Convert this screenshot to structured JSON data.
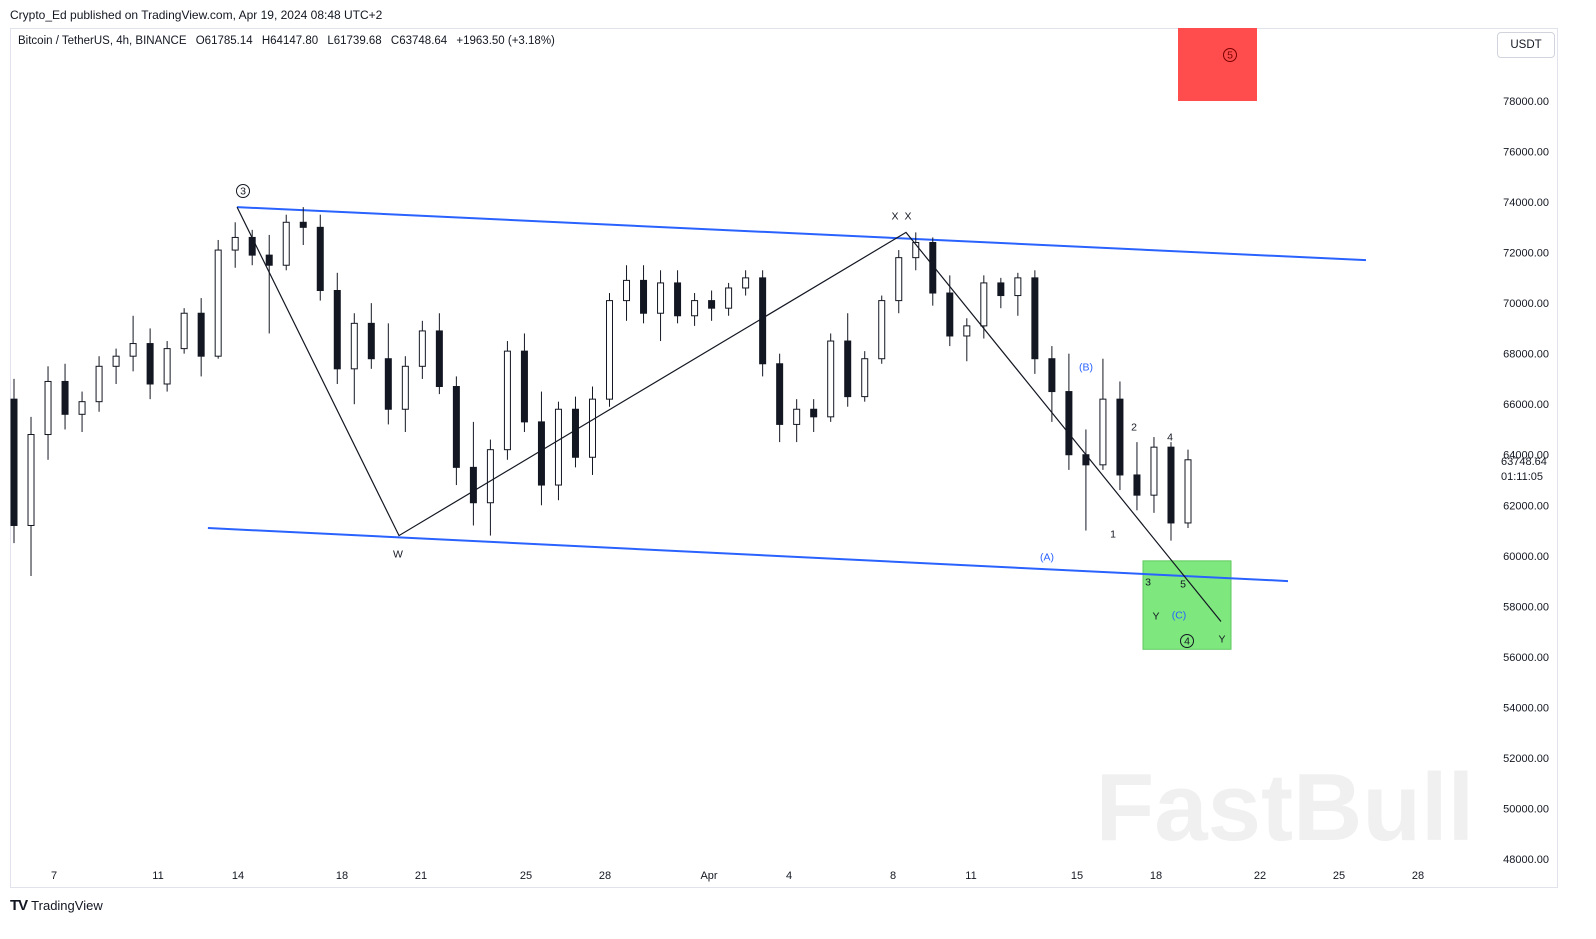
{
  "header": {
    "published": "Crypto_Ed published on TradingView.com, Apr 19, 2024 08:48 UTC+2",
    "symbol": "Bitcoin / TetherUS, 4h, BINANCE",
    "open": "O61785.14",
    "high": "H64147.80",
    "low": "L61739.68",
    "close": "C63748.64",
    "change": "+1963.50 (+3.18%)"
  },
  "currency_button": "USDT",
  "footer": {
    "logo": "TV",
    "brand": "TradingView"
  },
  "watermark": "FastBull",
  "price_box": {
    "price": "63748.64",
    "countdown": "01:11:05",
    "color": "#131722"
  },
  "colors": {
    "channel": "#2962ff",
    "up": "#ffffff",
    "down": "#131722",
    "red_box": "#ff4d4d",
    "green_box": "#7ee87e",
    "wave_blue": "#2962ff"
  },
  "chart_data": {
    "type": "candlestick",
    "x_tick_labels": [
      "7",
      "11",
      "14",
      "18",
      "21",
      "25",
      "28",
      "Apr",
      "4",
      "8",
      "11",
      "15",
      "18",
      "22",
      "25",
      "28"
    ],
    "y_tick_labels": [
      "78000.00",
      "76000.00",
      "74000.00",
      "72000.00",
      "70000.00",
      "68000.00",
      "66000.00",
      "64000.00",
      "62000.00",
      "60000.00",
      "58000.00",
      "56000.00",
      "54000.00",
      "52000.00",
      "50000.00",
      "48000.00"
    ],
    "ylim": [
      47800,
      79800
    ],
    "swing_path": [
      {
        "x": "Mar 14",
        "y": 73800
      },
      {
        "x": "Mar 20",
        "y": 60800
      },
      {
        "x": "Apr 8",
        "y": 72800
      },
      {
        "x": "Apr 19",
        "y": 57400
      }
    ],
    "upper_channel": [
      {
        "x": "Mar 14",
        "y": 73800
      },
      {
        "x": "Apr 26",
        "y": 71700
      }
    ],
    "lower_channel": [
      {
        "x": "Mar 13",
        "y": 61100
      },
      {
        "x": "Apr 23",
        "y": 59000
      }
    ],
    "red_box": {
      "x_from": "Apr 18",
      "x_to": "Apr 20",
      "y_from": 78000,
      "y_to": 81000
    },
    "green_box": {
      "x_from": "Apr 17",
      "x_to": "Apr 20",
      "y_from": 56300,
      "y_to": 59800
    },
    "wave_labels": [
      {
        "text": "3",
        "circled": true,
        "x": "Mar 14",
        "y": 74500
      },
      {
        "text": "W",
        "x": "Mar 20",
        "y": 60200
      },
      {
        "text": "X",
        "x": "Apr 8",
        "y": 73400
      },
      {
        "text": "X",
        "x": "Apr 8",
        "y": 73400
      },
      {
        "text": "(B)",
        "x": "Apr 15",
        "y": 67600,
        "blue": true
      },
      {
        "text": "(A)",
        "x": "Apr 14",
        "y": 60000,
        "blue": true
      },
      {
        "text": "2",
        "x": "Apr 17",
        "y": 64700
      },
      {
        "text": "4",
        "x": "Apr 18",
        "y": 64300
      },
      {
        "text": "1",
        "x": "Apr 16",
        "y": 61100
      },
      {
        "text": "3",
        "x": "Apr 17",
        "y": 59100
      },
      {
        "text": "5",
        "x": "Apr 18",
        "y": 59000
      },
      {
        "text": "Y",
        "x": "Apr 17",
        "y": 57600
      },
      {
        "text": "(C)",
        "x": "Apr 18",
        "y": 57600,
        "blue": true
      },
      {
        "text": "4",
        "circled": true,
        "x": "Apr 18",
        "y": 56600
      },
      {
        "text": "Y",
        "x": "Apr 19",
        "y": 56800
      },
      {
        "text": "5",
        "circled": true,
        "x": "Apr 18",
        "y": 79800
      }
    ],
    "candles_ohlc_approx": [
      [
        66200,
        67000,
        60500,
        61200
      ],
      [
        61200,
        65500,
        59200,
        64800
      ],
      [
        64800,
        67500,
        63800,
        66900
      ],
      [
        66900,
        67600,
        65000,
        65600
      ],
      [
        65600,
        66500,
        64900,
        66100
      ],
      [
        66100,
        67900,
        65700,
        67500
      ],
      [
        67500,
        68200,
        66800,
        67900
      ],
      [
        67900,
        69500,
        67300,
        68400
      ],
      [
        68400,
        69000,
        66200,
        66800
      ],
      [
        66800,
        68500,
        66500,
        68200
      ],
      [
        68200,
        69800,
        68000,
        69600
      ],
      [
        69600,
        70200,
        67100,
        67900
      ],
      [
        67900,
        72500,
        67800,
        72100
      ],
      [
        72100,
        73200,
        71400,
        72600
      ],
      [
        72600,
        72900,
        71500,
        71900
      ],
      [
        71900,
        72700,
        68800,
        71500
      ],
      [
        71500,
        73500,
        71300,
        73200
      ],
      [
        73200,
        73800,
        72300,
        73000
      ],
      [
        73000,
        73500,
        70100,
        70500
      ],
      [
        70500,
        71200,
        66800,
        67400
      ],
      [
        67400,
        69600,
        66000,
        69200
      ],
      [
        69200,
        70000,
        67400,
        67800
      ],
      [
        67800,
        69200,
        65200,
        65800
      ],
      [
        65800,
        67900,
        64900,
        67500
      ],
      [
        67500,
        69300,
        67000,
        68900
      ],
      [
        68900,
        69600,
        66400,
        66700
      ],
      [
        66700,
        67100,
        62800,
        63500
      ],
      [
        63500,
        65300,
        61200,
        62100
      ],
      [
        62100,
        64600,
        60800,
        64200
      ],
      [
        64200,
        68500,
        63800,
        68100
      ],
      [
        68100,
        68800,
        64900,
        65300
      ],
      [
        65300,
        66500,
        62000,
        62800
      ],
      [
        62800,
        66100,
        62200,
        65800
      ],
      [
        65800,
        66300,
        63500,
        63900
      ],
      [
        63900,
        66700,
        63200,
        66200
      ],
      [
        66200,
        70400,
        65900,
        70100
      ],
      [
        70100,
        71500,
        69300,
        70900
      ],
      [
        70900,
        71500,
        69200,
        69600
      ],
      [
        69600,
        71300,
        68500,
        70800
      ],
      [
        70800,
        71300,
        69200,
        69500
      ],
      [
        69500,
        70400,
        69100,
        70100
      ],
      [
        70100,
        70500,
        69300,
        69800
      ],
      [
        69800,
        70800,
        69500,
        70600
      ],
      [
        70600,
        71300,
        70300,
        71000
      ],
      [
        71000,
        71300,
        67100,
        67600
      ],
      [
        67600,
        68000,
        64500,
        65200
      ],
      [
        65200,
        66200,
        64500,
        65800
      ],
      [
        65800,
        66200,
        64900,
        65500
      ],
      [
        65500,
        68800,
        65300,
        68500
      ],
      [
        68500,
        69600,
        65900,
        66300
      ],
      [
        66300,
        68100,
        66100,
        67800
      ],
      [
        67800,
        70300,
        67600,
        70100
      ],
      [
        70100,
        72100,
        69600,
        71800
      ],
      [
        71800,
        72800,
        71300,
        72400
      ],
      [
        72400,
        72600,
        69900,
        70400
      ],
      [
        70400,
        71100,
        68300,
        68700
      ],
      [
        68700,
        69400,
        67700,
        69100
      ],
      [
        69100,
        71100,
        68600,
        70800
      ],
      [
        70800,
        71000,
        69800,
        70300
      ],
      [
        70300,
        71200,
        69500,
        71000
      ],
      [
        71000,
        71300,
        67200,
        67800
      ],
      [
        67800,
        68300,
        65300,
        66500
      ],
      [
        66500,
        68000,
        63400,
        64000
      ],
      [
        64000,
        65000,
        61000,
        63600
      ],
      [
        63600,
        67800,
        63400,
        66200
      ],
      [
        66200,
        66900,
        62600,
        63200
      ],
      [
        63200,
        64500,
        61800,
        62400
      ],
      [
        62400,
        64700,
        61700,
        64300
      ],
      [
        64300,
        64500,
        60600,
        61300
      ],
      [
        61300,
        64200,
        61100,
        63800
      ]
    ]
  }
}
